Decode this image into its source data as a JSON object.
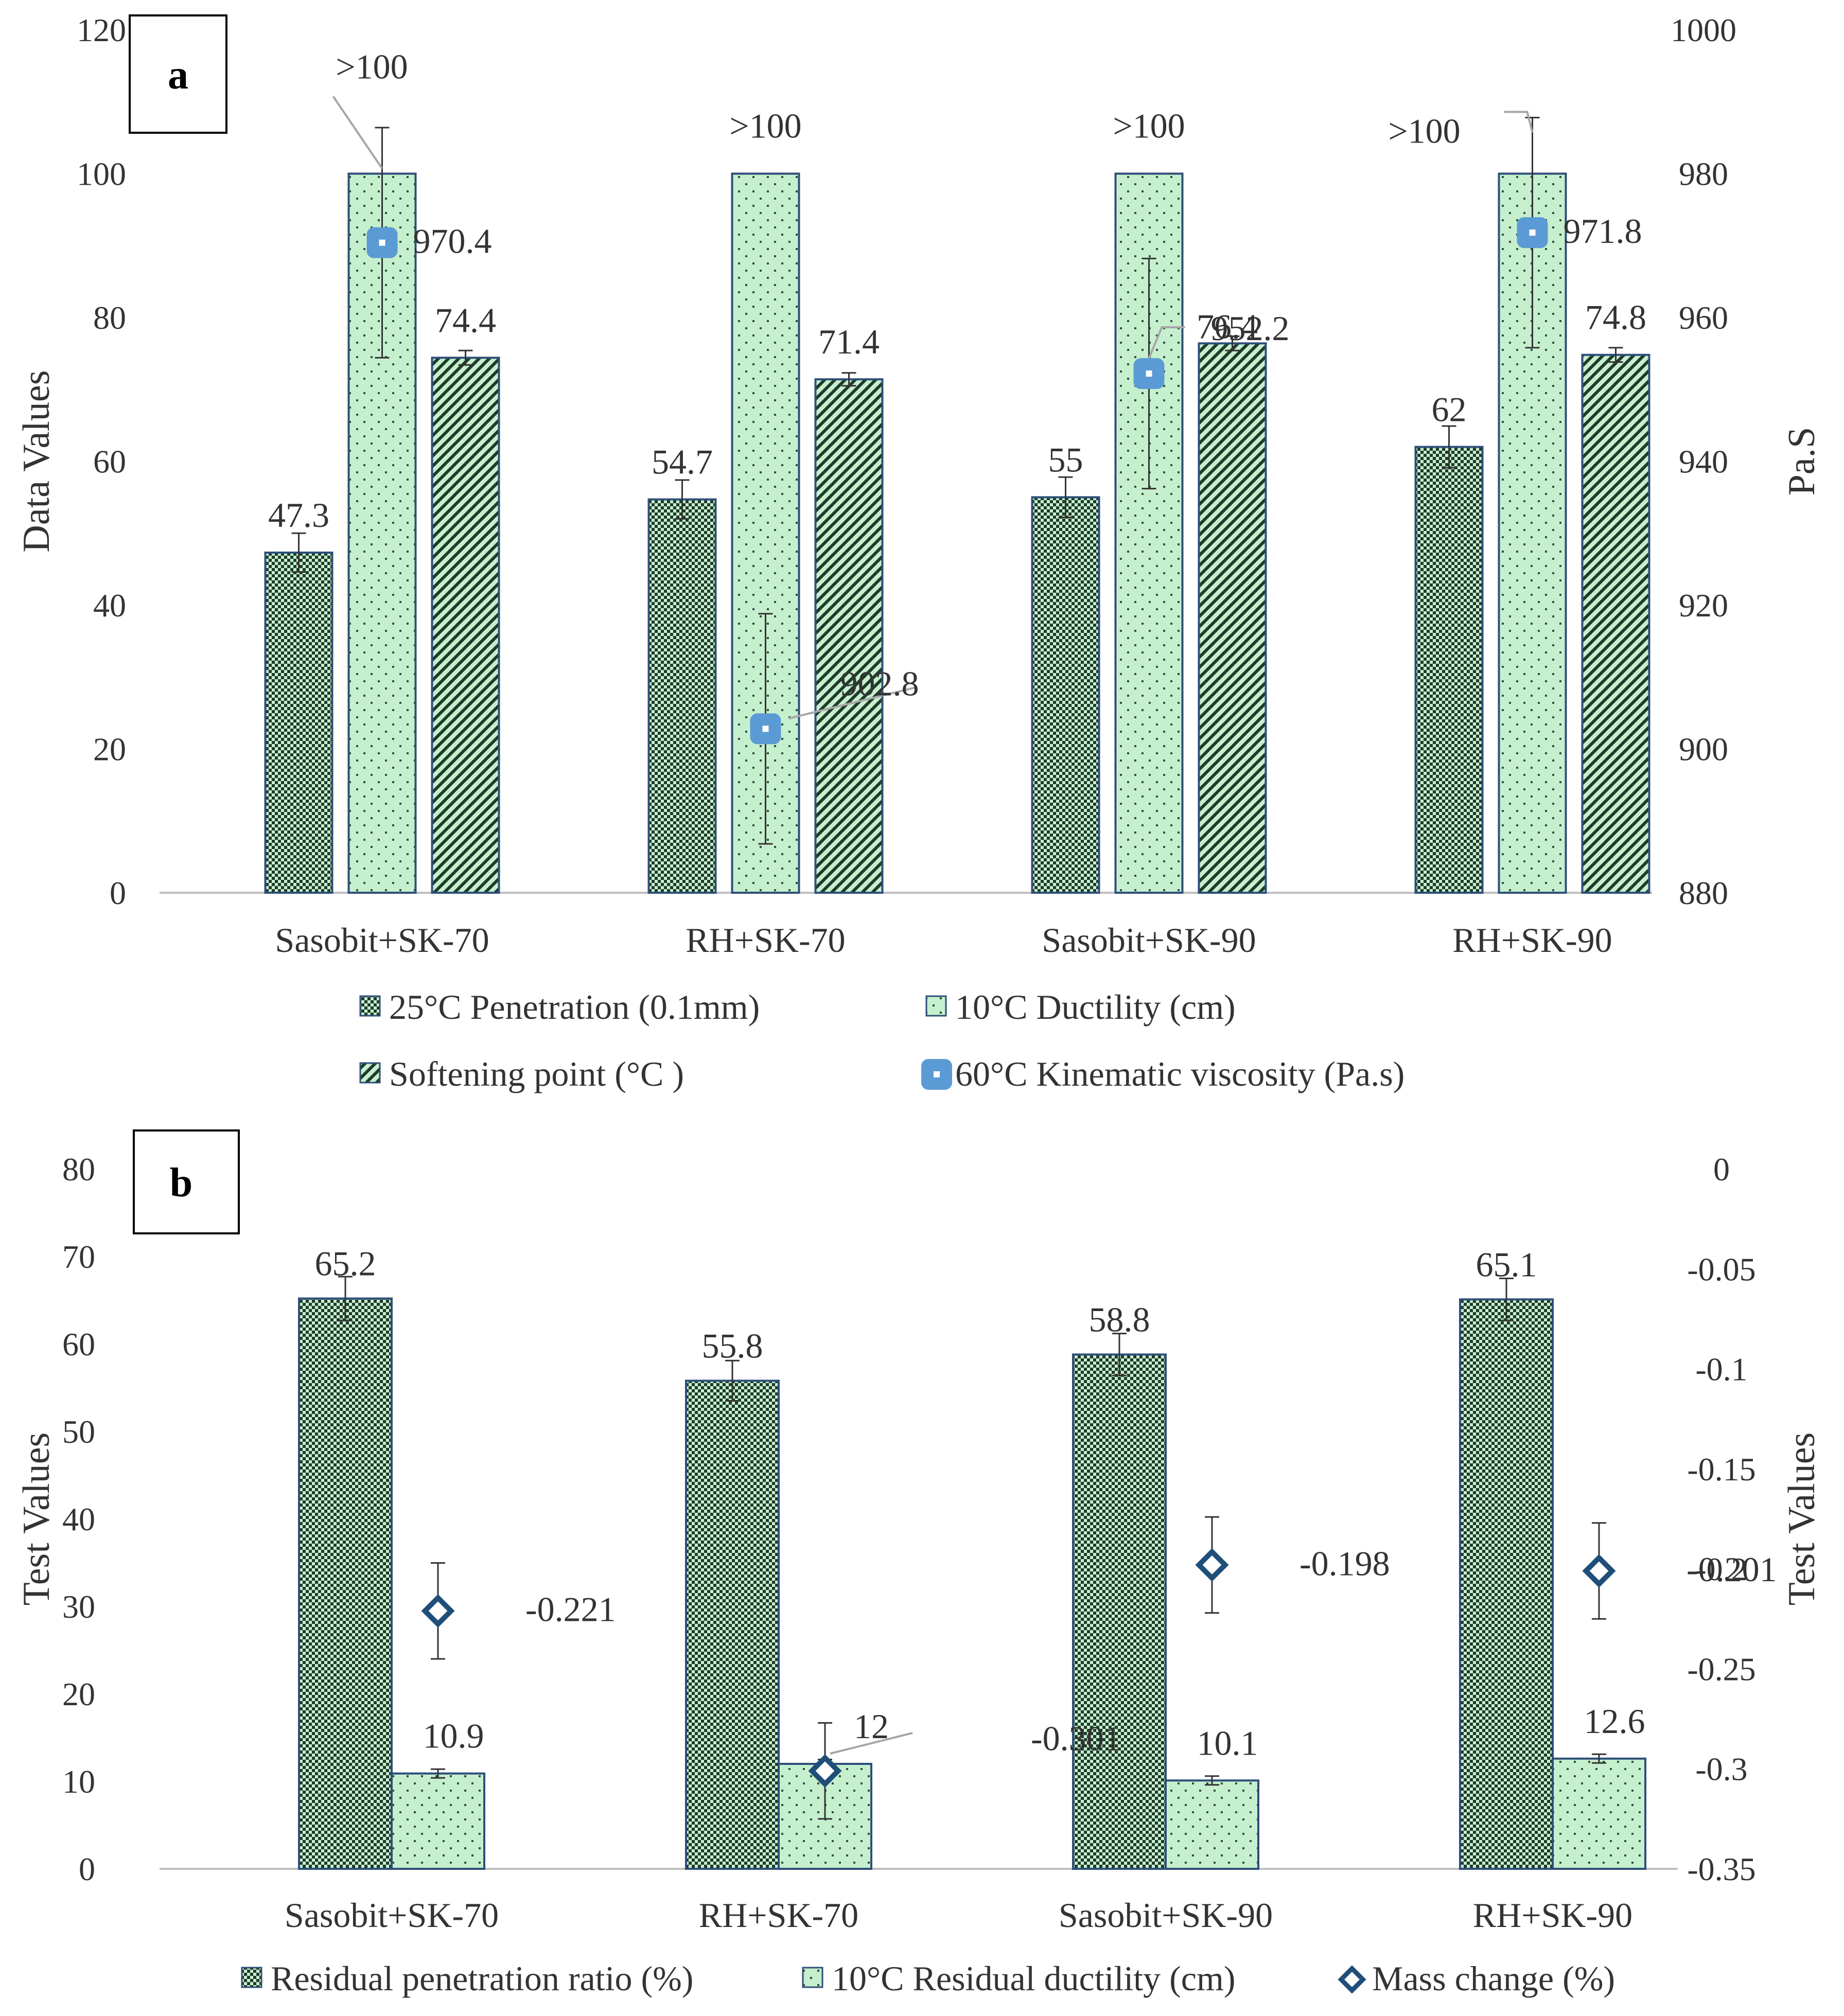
{
  "chart_data": [
    {
      "panel": "a",
      "type": "bar",
      "categories": [
        "Sasobit+SK-70",
        "RH+SK-70",
        "Sasobit+SK-90",
        "RH+SK-90"
      ],
      "ylabel": "Data Values",
      "ylabel_right": "Pa.S",
      "ylim": [
        0,
        120
      ],
      "yticks": [
        0,
        20,
        40,
        60,
        80,
        100,
        120
      ],
      "ylim_right": [
        880,
        1000
      ],
      "yticks_right": [
        880,
        900,
        920,
        940,
        960,
        980,
        1000
      ],
      "series": [
        {
          "name": "25°C Penetration (0.1mm)",
          "axis": "left",
          "pattern": "checker",
          "values": [
            47.3,
            54.7,
            55,
            62
          ],
          "labels": [
            "47.3",
            "54.7",
            "55",
            "62"
          ],
          "errors": [
            2.7,
            2.7,
            2.8,
            2.9
          ]
        },
        {
          "name": "10°C Ductility (cm)",
          "axis": "left",
          "pattern": "dots",
          "values": [
            100,
            100,
            100,
            100
          ],
          "labels": [
            ">100",
            ">100",
            ">100",
            ">100"
          ],
          "errors": [
            0,
            0,
            0,
            0
          ]
        },
        {
          "name": "Softening point (°C )",
          "axis": "left",
          "pattern": "diagonal",
          "values": [
            74.4,
            71.4,
            76.4,
            74.8
          ],
          "labels": [
            "74.4",
            "71.4",
            "76.4",
            "74.8"
          ],
          "errors": [
            1.0,
            0.9,
            1.0,
            1.0
          ]
        },
        {
          "name": "60°C Kinematic viscosity (Pa.s)",
          "axis": "right",
          "type": "marker",
          "values": [
            970.4,
            902.8,
            952.2,
            971.8
          ],
          "labels": [
            "970.4",
            "902.8",
            "952.2",
            "971.8"
          ],
          "errors": [
            16,
            16,
            16,
            16
          ]
        }
      ]
    },
    {
      "panel": "b",
      "type": "bar",
      "categories": [
        "Sasobit+SK-70",
        "RH+SK-70",
        "Sasobit+SK-90",
        "RH+SK-90"
      ],
      "ylabel": "Test Values",
      "ylabel_right": "Test Values",
      "ylim": [
        0,
        80
      ],
      "yticks": [
        0,
        10,
        20,
        30,
        40,
        50,
        60,
        70,
        80
      ],
      "ylim_right": [
        -0.35,
        0
      ],
      "yticks_right": [
        -0.35,
        -0.3,
        -0.25,
        -0.2,
        -0.15,
        -0.1,
        -0.05,
        0
      ],
      "series": [
        {
          "name": "Residual penetration ratio (%)",
          "axis": "left",
          "pattern": "checker",
          "values": [
            65.2,
            55.8,
            58.8,
            65.1
          ],
          "labels": [
            "65.2",
            "55.8",
            "58.8",
            "65.1"
          ],
          "errors": [
            2.5,
            2.3,
            2.4,
            2.4
          ]
        },
        {
          "name": "10°C  Residual ductility (cm)",
          "axis": "left",
          "pattern": "dots",
          "values": [
            10.9,
            12,
            10.1,
            12.6
          ],
          "labels": [
            "10.9",
            "12",
            "10.1",
            "12.6"
          ],
          "errors": [
            0.5,
            0.5,
            0.5,
            0.5
          ]
        },
        {
          "name": "Mass change (%)",
          "axis": "right",
          "type": "marker",
          "values": [
            -0.221,
            -0.301,
            -0.198,
            -0.201
          ],
          "labels": [
            "-0.221",
            "-0.301",
            "-0.198",
            "-0.201"
          ],
          "errors": [
            0.024,
            0.024,
            0.024,
            0.024
          ]
        }
      ]
    }
  ],
  "colors": {
    "bar_fill": "#c6efce",
    "bar_stroke": "#2e4f7a",
    "pattern_dark": "#1f3a2a",
    "marker_light": "#5b9bd5",
    "marker_dark": "#1f4e79",
    "axis": "#bfbfbf",
    "text": "#333333",
    "leader": "#a6a6a6",
    "errorbar": "#333333"
  }
}
